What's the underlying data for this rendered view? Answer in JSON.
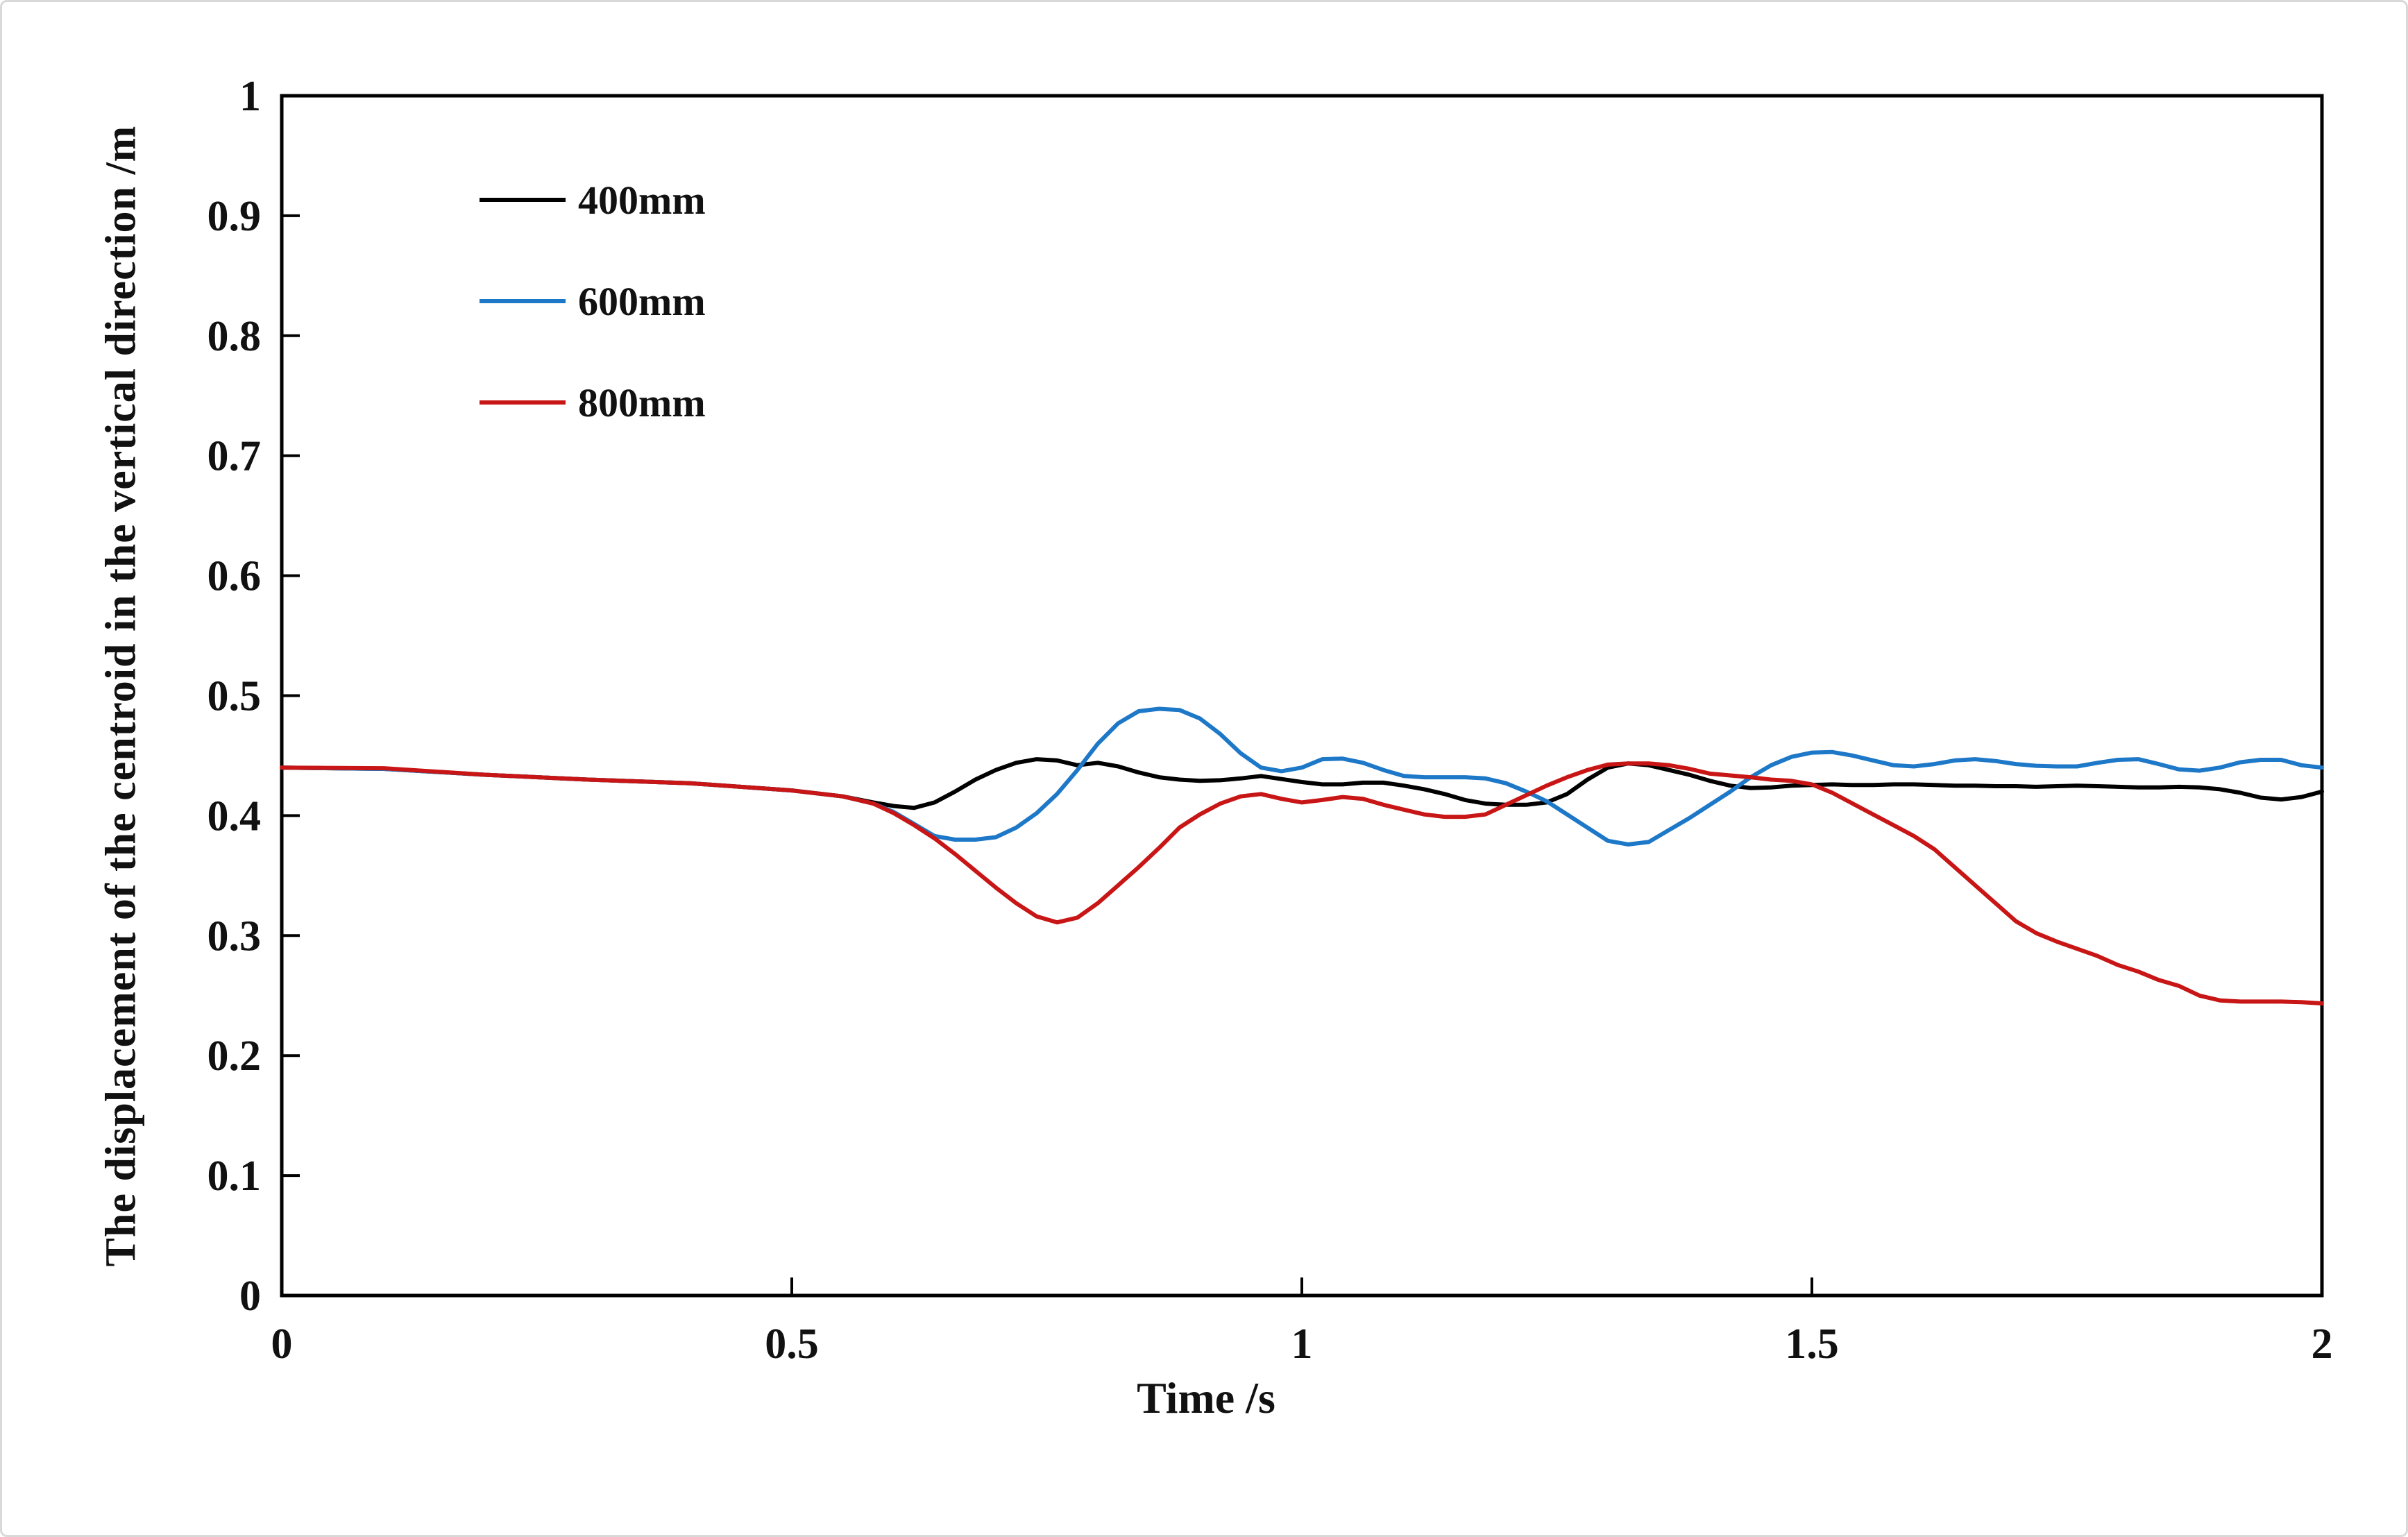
{
  "page": {
    "background": "#ffffff",
    "border_color": "#d9d9d9",
    "axis_color": "#000000",
    "text_color": "#111111"
  },
  "chart_data": {
    "type": "line",
    "title": "",
    "xlabel": "Time /s",
    "ylabel": "The displacement of the centroid in the vertical direction /m",
    "xlim": [
      0,
      2
    ],
    "ylim": [
      0,
      1
    ],
    "grid": false,
    "legend_position": "upper-left-inside",
    "xticks": {
      "values": [
        0,
        0.5,
        1,
        1.5,
        2
      ],
      "labels": [
        "0",
        "0.5",
        "1",
        "1.5",
        "2"
      ]
    },
    "yticks": {
      "values": [
        0,
        0.1,
        0.2,
        0.3,
        0.4,
        0.5,
        0.6,
        0.7,
        0.8,
        0.9,
        1
      ],
      "labels": [
        "0",
        "0.1",
        "0.2",
        "0.3",
        "0.4",
        "0.5",
        "0.6",
        "0.7",
        "0.8",
        "0.9",
        "1"
      ]
    },
    "x": [
      0,
      0.1,
      0.2,
      0.3,
      0.4,
      0.5,
      0.55,
      0.58,
      0.6,
      0.62,
      0.64,
      0.66,
      0.68,
      0.7,
      0.72,
      0.74,
      0.76,
      0.78,
      0.8,
      0.82,
      0.84,
      0.86,
      0.88,
      0.9,
      0.92,
      0.94,
      0.96,
      0.98,
      1,
      1.02,
      1.04,
      1.06,
      1.08,
      1.1,
      1.12,
      1.14,
      1.16,
      1.18,
      1.2,
      1.22,
      1.24,
      1.26,
      1.28,
      1.3,
      1.32,
      1.34,
      1.36,
      1.38,
      1.4,
      1.42,
      1.44,
      1.46,
      1.48,
      1.5,
      1.52,
      1.54,
      1.56,
      1.58,
      1.6,
      1.62,
      1.64,
      1.66,
      1.68,
      1.7,
      1.72,
      1.74,
      1.76,
      1.78,
      1.8,
      1.82,
      1.84,
      1.86,
      1.88,
      1.9,
      1.92,
      1.94,
      1.96,
      1.98,
      2
    ],
    "series": [
      {
        "name": "400mm",
        "color": "#000000",
        "values": [
          0.44,
          0.439,
          0.434,
          0.43,
          0.427,
          0.421,
          0.416,
          0.411,
          0.408,
          0.4065,
          0.411,
          0.42,
          0.43,
          0.438,
          0.444,
          0.447,
          0.446,
          0.442,
          0.444,
          0.441,
          0.436,
          0.432,
          0.43,
          0.429,
          0.4295,
          0.431,
          0.433,
          0.4305,
          0.428,
          0.426,
          0.426,
          0.4275,
          0.4275,
          0.425,
          0.422,
          0.418,
          0.413,
          0.41,
          0.409,
          0.409,
          0.411,
          0.418,
          0.43,
          0.44,
          0.4435,
          0.442,
          0.438,
          0.434,
          0.429,
          0.425,
          0.423,
          0.4235,
          0.425,
          0.4255,
          0.426,
          0.4255,
          0.4255,
          0.426,
          0.426,
          0.4255,
          0.425,
          0.425,
          0.4245,
          0.4245,
          0.424,
          0.4245,
          0.425,
          0.4245,
          0.424,
          0.4235,
          0.4235,
          0.424,
          0.4235,
          0.422,
          0.419,
          0.415,
          0.4135,
          0.4155,
          0.42
        ]
      },
      {
        "name": "600mm",
        "color": "#1e78c8",
        "values": [
          0.44,
          0.439,
          0.434,
          0.43,
          0.427,
          0.421,
          0.416,
          0.41,
          0.403,
          0.393,
          0.383,
          0.38,
          0.38,
          0.382,
          0.39,
          0.402,
          0.418,
          0.438,
          0.46,
          0.477,
          0.487,
          0.489,
          0.488,
          0.481,
          0.468,
          0.452,
          0.44,
          0.437,
          0.44,
          0.447,
          0.4475,
          0.444,
          0.438,
          0.433,
          0.432,
          0.432,
          0.432,
          0.431,
          0.427,
          0.42,
          0.412,
          0.401,
          0.39,
          0.379,
          0.376,
          0.378,
          0.388,
          0.398,
          0.409,
          0.42,
          0.432,
          0.442,
          0.449,
          0.4525,
          0.453,
          0.45,
          0.446,
          0.442,
          0.441,
          0.443,
          0.446,
          0.447,
          0.4455,
          0.443,
          0.4415,
          0.441,
          0.441,
          0.444,
          0.4465,
          0.447,
          0.443,
          0.4385,
          0.4375,
          0.44,
          0.4445,
          0.4465,
          0.4465,
          0.442,
          0.44
        ]
      },
      {
        "name": "800mm",
        "color": "#c81616",
        "values": [
          0.44,
          0.4395,
          0.434,
          0.43,
          0.427,
          0.421,
          0.416,
          0.41,
          0.402,
          0.392,
          0.381,
          0.368,
          0.354,
          0.34,
          0.327,
          0.316,
          0.311,
          0.315,
          0.327,
          0.342,
          0.357,
          0.373,
          0.39,
          0.401,
          0.41,
          0.416,
          0.418,
          0.414,
          0.411,
          0.413,
          0.4155,
          0.414,
          0.409,
          0.405,
          0.401,
          0.399,
          0.399,
          0.401,
          0.409,
          0.417,
          0.425,
          0.432,
          0.438,
          0.4425,
          0.4435,
          0.4435,
          0.442,
          0.439,
          0.435,
          0.4335,
          0.432,
          0.43,
          0.429,
          0.426,
          0.419,
          0.41,
          0.401,
          0.392,
          0.383,
          0.372,
          0.357,
          0.342,
          0.327,
          0.312,
          0.302,
          0.295,
          0.289,
          0.283,
          0.2755,
          0.27,
          0.263,
          0.258,
          0.25,
          0.246,
          0.245,
          0.245,
          0.245,
          0.2445,
          0.2435
        ]
      }
    ]
  }
}
